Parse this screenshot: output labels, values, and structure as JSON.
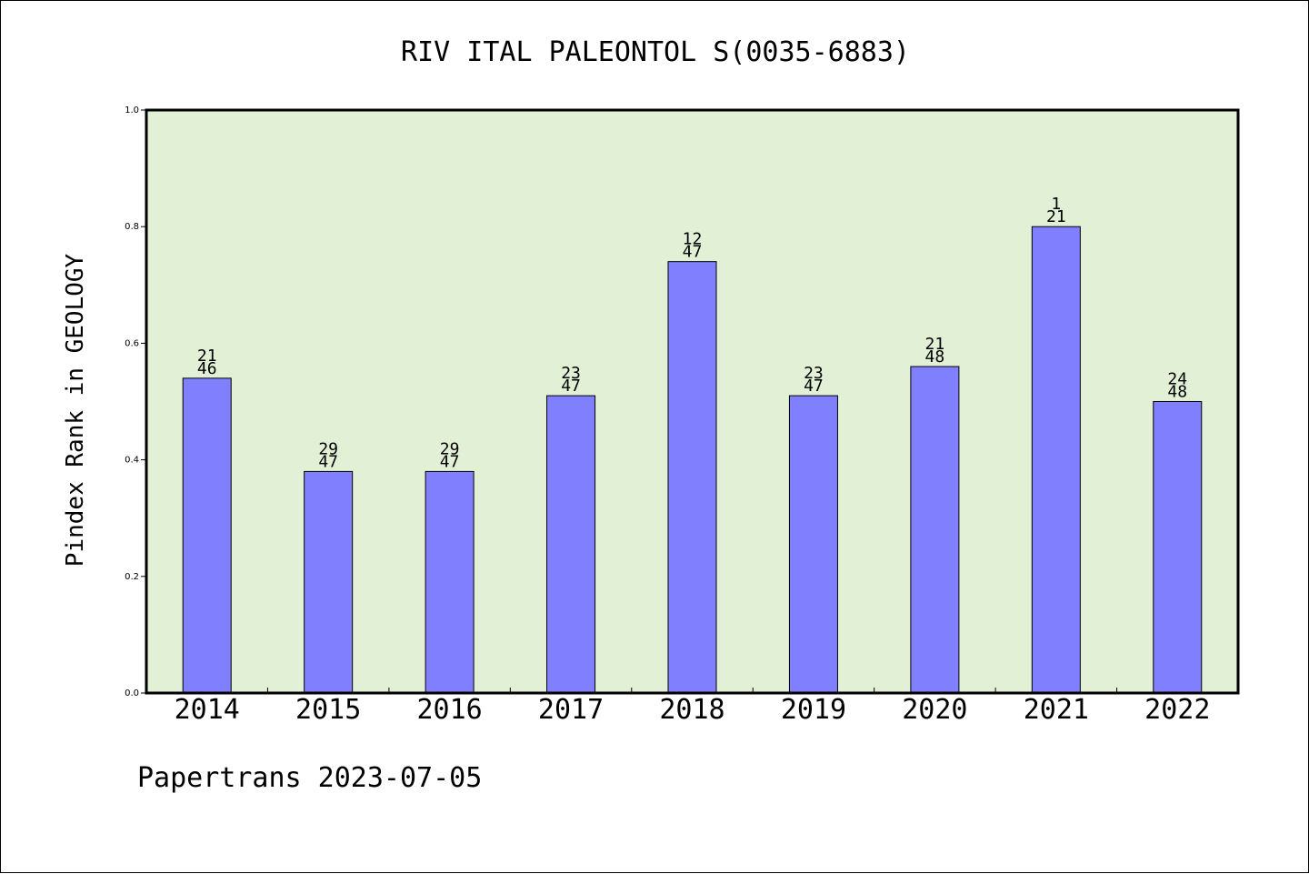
{
  "chart_data": {
    "type": "bar",
    "title": "RIV ITAL PALEONTOL S(0035-6883)",
    "xlabel": "",
    "ylabel": "Pindex Rank in GEOLOGY",
    "footer": "Papertrans 2023-07-05",
    "categories": [
      "2014",
      "2015",
      "2016",
      "2017",
      "2018",
      "2019",
      "2020",
      "2021",
      "2022"
    ],
    "values": [
      0.54,
      0.38,
      0.38,
      0.51,
      0.74,
      0.51,
      0.56,
      0.8,
      0.5
    ],
    "ranks": [
      "21",
      "29",
      "29",
      "23",
      "12",
      "23",
      "21",
      "1",
      "24"
    ],
    "totals": [
      "46",
      "47",
      "47",
      "47",
      "47",
      "47",
      "48",
      "21",
      "48"
    ],
    "ylim": [
      0,
      1.0
    ],
    "yticks": [
      "0.0",
      "0.2",
      "0.4",
      "0.6",
      "0.8",
      "1.0"
    ],
    "grid": false,
    "colors": {
      "plot_background": "#e2f0d6",
      "bar_fill": "#8080ff",
      "bar_stroke": "#000000",
      "axis": "#000000"
    }
  }
}
